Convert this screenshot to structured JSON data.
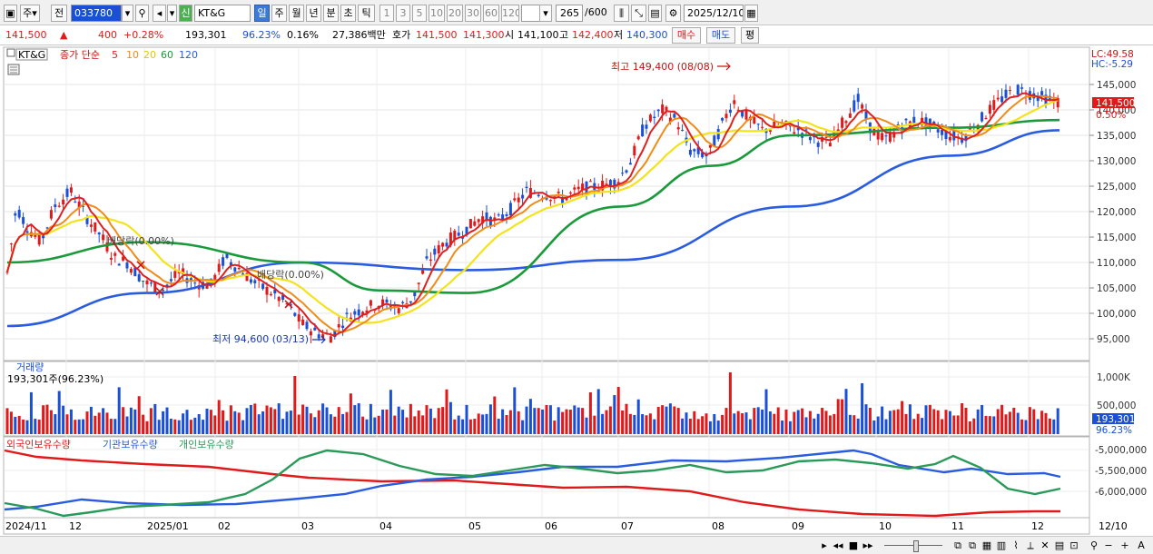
{
  "toolbar": {
    "market": "주",
    "prev_label": "전",
    "code": "033780",
    "new_badge": "신",
    "name": "KT&G",
    "periods": [
      "일",
      "주",
      "월",
      "년",
      "분",
      "초",
      "틱"
    ],
    "active_period": "일",
    "intervals": [
      "1",
      "3",
      "5",
      "10",
      "20",
      "30",
      "60",
      "120"
    ],
    "count": "265",
    "count_total": "/600",
    "date": "2025/12/10"
  },
  "quote": {
    "price": "141,500",
    "change": "400",
    "change_pct": "+0.28%",
    "volume": "193,301",
    "vol_ratio": "96.23%",
    "turnover_pct": "0.16%",
    "amount": "27,386백만",
    "ask_label": "호가",
    "ask": "141,500",
    "bid": "141,300",
    "open_label": "시",
    "open": "141,100",
    "high_label": "고",
    "high": "142,400",
    "low_label": "저",
    "low": "140,300",
    "buy_label": "매수",
    "sell_label": "매도",
    "eval_label": "평"
  },
  "price_panel": {
    "stock_tag": "KT&G",
    "ma_label": "종가 단순",
    "ma_periods": [
      {
        "label": "5",
        "color": "#e02020"
      },
      {
        "label": "10",
        "color": "#f08c1a"
      },
      {
        "label": "20",
        "color": "#f2e31a"
      },
      {
        "label": "60",
        "color": "#1a9a3a"
      },
      {
        "label": "120",
        "color": "#2a5ce0"
      }
    ],
    "lc_label": "LC:49.58",
    "hc_label": "HC:-5.29",
    "high_marker": "최고 149,400 (08/08)",
    "low_marker": "최저 94,600 (03/13)",
    "dividend1": "배당락(0.00%)",
    "dividend2": "배당락(0.00%)",
    "last_price_tag": "141,500",
    "last_pct_tag": "0.50%",
    "y_ticks": [
      "145,000",
      "140,000",
      "135,000",
      "130,000",
      "125,000",
      "120,000",
      "115,000",
      "110,000",
      "105,000",
      "100,000",
      "95,000"
    ],
    "colors": {
      "up": "#e01a1a",
      "down": "#1a4fd6",
      "ma5": "#e02020",
      "ma10": "#f08c1a",
      "ma20": "#f2e31a",
      "ma60": "#1a9a3a",
      "ma120": "#2a5ce0"
    }
  },
  "volume_panel": {
    "title": "거래량",
    "sub": "193,301주(96.23%)",
    "y_ticks": [
      "1,000K",
      "500,000"
    ],
    "last_tag": "193,301",
    "last_pct": "96.23%"
  },
  "holding_panel": {
    "series": [
      {
        "label": "외국인보유수량",
        "color": "#e01a1a"
      },
      {
        "label": "기관보유수량",
        "color": "#2a5ce0"
      },
      {
        "label": "개인보유수량",
        "color": "#2a9a5a"
      }
    ],
    "y_ticks": [
      "-5,000,000",
      "-5,500,000",
      "-6,000,000"
    ]
  },
  "x_axis": [
    "2024/11",
    "12",
    "2025/01",
    "02",
    "03",
    "04",
    "05",
    "06",
    "07",
    "08",
    "09",
    "10",
    "11",
    "12",
    "12/10"
  ],
  "chart_data": {
    "type": "candlestick",
    "date_range": [
      "2024/11",
      "2025/12/10"
    ],
    "ylim": [
      92000,
      150000
    ],
    "high": {
      "value": 149400,
      "date": "08/08"
    },
    "low": {
      "value": 94600,
      "date": "03/13"
    },
    "last_close": 141500,
    "monthly_close_approx": {
      "x": [
        "2024/11",
        "2024/12",
        "2025/01",
        "2025/02",
        "2025/03",
        "2025/04",
        "2025/05",
        "2025/06",
        "2025/07",
        "2025/08",
        "2025/09",
        "2025/10",
        "2025/11",
        "2025/12"
      ],
      "close": [
        115000,
        121000,
        108000,
        110000,
        96000,
        102000,
        115000,
        123000,
        138000,
        132000,
        136000,
        135000,
        142000,
        141500
      ]
    },
    "ma120_approx": {
      "x": [
        "2024/11",
        "2025/01",
        "2025/03",
        "2025/05",
        "2025/07",
        "2025/09",
        "2025/11",
        "2025/12"
      ],
      "values": [
        97500,
        104000,
        110000,
        108500,
        110500,
        121000,
        131000,
        136000
      ]
    },
    "ma60_approx": {
      "x": [
        "2024/11",
        "2025/01",
        "2025/03",
        "2025/04",
        "2025/05",
        "2025/07",
        "2025/08",
        "2025/09",
        "2025/11",
        "2025/12"
      ],
      "values": [
        110000,
        114000,
        110000,
        104500,
        104000,
        121000,
        129000,
        135000,
        136500,
        138000
      ]
    }
  }
}
